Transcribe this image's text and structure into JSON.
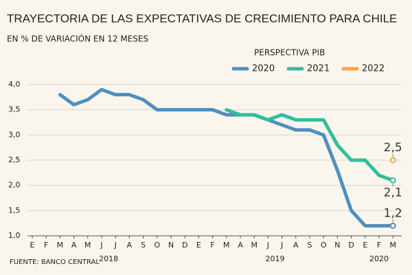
{
  "chart_data": {
    "type": "line",
    "title": "TRAYECTORIA DE LAS EXPECTATIVAS DE CRECIMIENTO PARA CHILE",
    "subtitle": "EN % DE VARIACIÓN EN 12 MESES",
    "source": "FUENTE: BANCO CENTRAL",
    "legend_title": "PERSPECTIVA PIB",
    "categories": [
      "E",
      "F",
      "M",
      "A",
      "M",
      "J",
      "J",
      "A",
      "S",
      "O",
      "N",
      "D",
      "E",
      "F",
      "M",
      "A",
      "M",
      "J",
      "J",
      "A",
      "S",
      "O",
      "N",
      "D",
      "E",
      "F",
      "M"
    ],
    "category_groups": [
      {
        "label": "2018",
        "categories": 12
      },
      {
        "label": "2019",
        "categories": 12
      },
      {
        "label": "2020",
        "categories": 3
      }
    ],
    "series": [
      {
        "name": "2020",
        "color": "#4f8fbe",
        "values": [
          null,
          null,
          3.8,
          3.6,
          3.7,
          3.9,
          3.8,
          3.8,
          3.7,
          3.5,
          3.5,
          3.5,
          3.5,
          3.5,
          3.4,
          3.4,
          3.4,
          3.3,
          3.2,
          3.1,
          3.1,
          3.0,
          2.3,
          1.5,
          1.2,
          1.2,
          1.2
        ],
        "value_labels": [
          null,
          null,
          null,
          null,
          null,
          null,
          null,
          null,
          null,
          null,
          null,
          null,
          null,
          null,
          null,
          null,
          null,
          null,
          null,
          null,
          null,
          null,
          null,
          null,
          null,
          null,
          "1,2"
        ]
      },
      {
        "name": "2021",
        "color": "#2fbf9c",
        "values": [
          null,
          null,
          null,
          null,
          null,
          null,
          null,
          null,
          null,
          null,
          null,
          null,
          null,
          null,
          3.5,
          3.4,
          3.4,
          3.3,
          3.4,
          3.3,
          3.3,
          3.3,
          2.8,
          2.5,
          2.5,
          2.2,
          2.1
        ],
        "value_labels": [
          null,
          null,
          null,
          null,
          null,
          null,
          null,
          null,
          null,
          null,
          null,
          null,
          null,
          null,
          null,
          null,
          null,
          null,
          null,
          null,
          null,
          null,
          null,
          null,
          null,
          null,
          "2,1"
        ]
      },
      {
        "name": "2022",
        "color": "#f5a93b",
        "values": [
          null,
          null,
          null,
          null,
          null,
          null,
          null,
          null,
          null,
          null,
          null,
          null,
          null,
          null,
          null,
          null,
          null,
          null,
          null,
          null,
          null,
          null,
          null,
          null,
          null,
          null,
          2.5
        ],
        "value_labels": [
          null,
          null,
          null,
          null,
          null,
          null,
          null,
          null,
          null,
          null,
          null,
          null,
          null,
          null,
          null,
          null,
          null,
          null,
          null,
          null,
          null,
          null,
          null,
          null,
          null,
          null,
          "2,5"
        ]
      }
    ],
    "ylim": [
      1.0,
      4.0
    ],
    "yticks": [
      {
        "value": 1.0,
        "label": "1,0"
      },
      {
        "value": 1.5,
        "label": "1,5"
      },
      {
        "value": 2.0,
        "label": "2,0"
      },
      {
        "value": 2.5,
        "label": "2,5"
      },
      {
        "value": 3.0,
        "label": "3,0"
      },
      {
        "value": 3.5,
        "label": "3,5"
      },
      {
        "value": 4.0,
        "label": "4,0"
      }
    ],
    "grid": true
  }
}
